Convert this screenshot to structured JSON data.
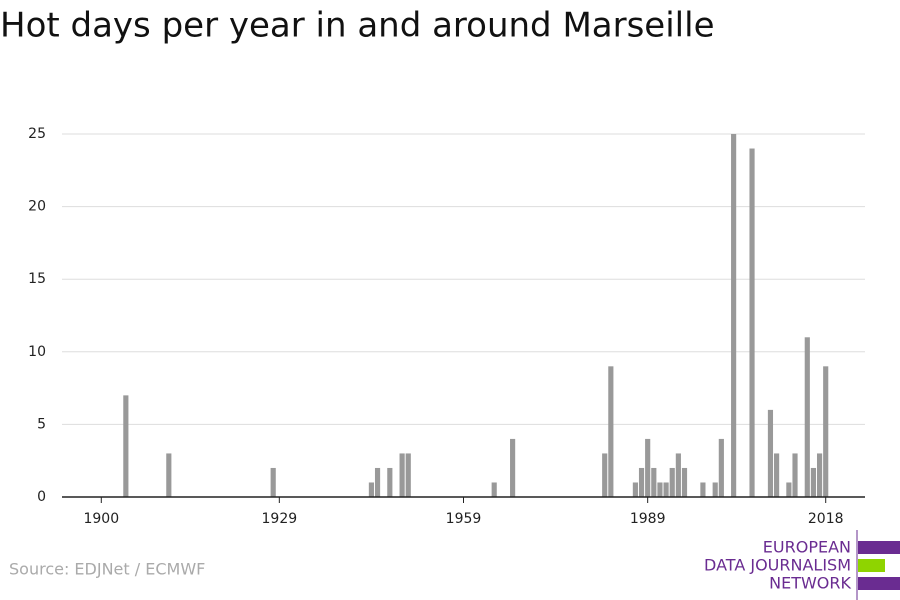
{
  "chart_data": {
    "type": "bar",
    "title": "Hot days per year in and around Marseille",
    "source": "Source: EDJNet / ECMWF",
    "logo": [
      "EUROPEAN",
      "DATA JOURNALISM",
      "NETWORK"
    ],
    "x": [
      1904,
      1911,
      1928,
      1944,
      1945,
      1947,
      1949,
      1950,
      1964,
      1967,
      1982,
      1983,
      1987,
      1988,
      1989,
      1990,
      1991,
      1992,
      1993,
      1994,
      1995,
      1998,
      2000,
      2001,
      2003,
      2006,
      2009,
      2010,
      2012,
      2013,
      2015,
      2016,
      2017,
      2018
    ],
    "values": [
      7,
      3,
      2,
      1,
      2,
      2,
      3,
      3,
      1,
      4,
      3,
      9,
      1,
      2,
      4,
      2,
      1,
      1,
      2,
      3,
      2,
      1,
      1,
      4,
      25,
      24,
      6,
      3,
      1,
      3,
      11,
      2,
      3,
      9
    ],
    "color": "#999999",
    "xlim": [
      1893.6,
      2024.4
    ],
    "xticks": [
      1900,
      1929,
      1959,
      1989,
      2018
    ],
    "ylim": [
      0,
      25
    ],
    "yticks": [
      0,
      5,
      10,
      15,
      20,
      25
    ],
    "grid": true
  }
}
